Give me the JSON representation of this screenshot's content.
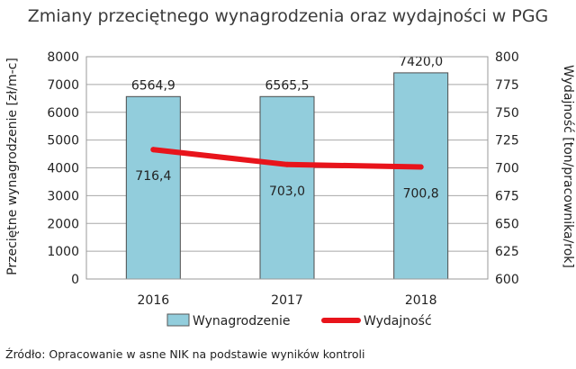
{
  "chart_data": {
    "type": "bar",
    "title": "Zmiany przeciętnego wynagrodzenia oraz wydajności w PGG",
    "categories": [
      "2016",
      "2017",
      "2018"
    ],
    "series": [
      {
        "name": "Wynagrodzenie",
        "type": "bar",
        "axis": "left",
        "values": [
          6564.9,
          6565.5,
          7420.0
        ],
        "labels": [
          "6564,9",
          "6565,5",
          "7420,0"
        ],
        "color": "#92CDDC"
      },
      {
        "name": "Wydajność",
        "type": "line",
        "axis": "right",
        "values": [
          716.4,
          703.0,
          700.8
        ],
        "labels": [
          "716,4",
          "703,0",
          "700,8"
        ],
        "color": "#E8141B"
      }
    ],
    "ylabel": "Przeciętne wynagrodzenie   [zł/m-c]",
    "y2label": "Wydajność   [ton/pracownika/rok]",
    "ylim": [
      0,
      8000
    ],
    "y2lim": [
      600,
      800
    ],
    "yticks": [
      "0",
      "1000",
      "2000",
      "3000",
      "4000",
      "5000",
      "6000",
      "7000",
      "8000"
    ],
    "y2ticks": [
      "600",
      "625",
      "650",
      "675",
      "700",
      "725",
      "750",
      "775",
      "800"
    ],
    "grid": true,
    "legend": "bottom",
    "source": "Źródło: Opracowanie w asne NIK na podstawie wyników kontroli"
  }
}
